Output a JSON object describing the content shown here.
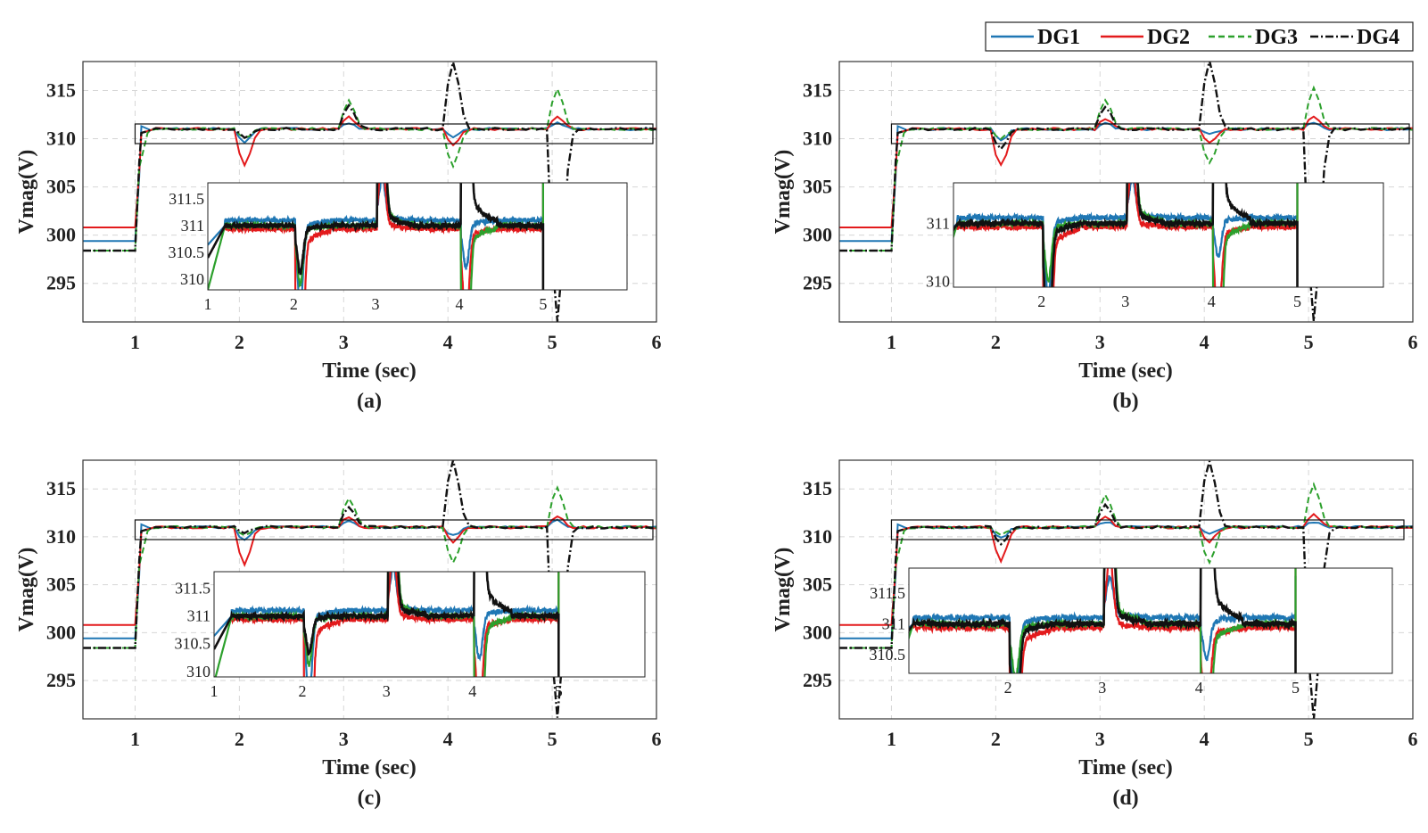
{
  "chart_data": [
    {
      "type": "line",
      "caption": "(a)",
      "xlabel": "Time (sec)",
      "ylabel": "Vmag(V)",
      "xlim": [
        0.5,
        6
      ],
      "ylim": [
        291,
        318
      ],
      "xticks": [
        1,
        2,
        3,
        4,
        5,
        6
      ],
      "yticks": [
        295,
        300,
        305,
        310,
        315
      ],
      "grid": true,
      "initial_values": {
        "DG1": 299.4,
        "DG2": 300.8,
        "DG3": 298.4,
        "DG4": 298.4
      },
      "transients": [
        {
          "t": 2.05,
          "DG1": 309.6,
          "DG2": 307.2,
          "DG3": 310.0,
          "DG4": 310.2
        },
        {
          "t": 3.05,
          "DG1": 311.7,
          "DG2": 312.2,
          "DG3": 313.9,
          "DG4": 313.4
        },
        {
          "t": 4.05,
          "DG1": 310.2,
          "DG2": 309.4,
          "DG3": 307.2,
          "DG4": 318.0
        },
        {
          "t": 5.05,
          "DG1": 311.7,
          "DG2": 312.2,
          "DG3": 315.2,
          "DG4": 291.0
        }
      ],
      "inset": {
        "xticks": [
          1,
          2,
          3,
          4,
          5
        ],
        "yticks": [
          310,
          310.5,
          311,
          311.5
        ],
        "ylim": [
          309.8,
          311.8
        ]
      }
    },
    {
      "type": "line",
      "caption": "(b)",
      "xlabel": "Time (sec)",
      "ylabel": "Vmag(V)",
      "xlim": [
        0.5,
        6
      ],
      "ylim": [
        291,
        318
      ],
      "xticks": [
        1,
        2,
        3,
        4,
        5,
        6
      ],
      "yticks": [
        295,
        300,
        305,
        310,
        315
      ],
      "grid": true,
      "initial_values": {
        "DG1": 299.4,
        "DG2": 300.8,
        "DG3": 298.4,
        "DG4": 298.4
      },
      "transients": [
        {
          "t": 2.05,
          "DG1": 309.8,
          "DG2": 307.2,
          "DG3": 310.1,
          "DG4": 309.0
        },
        {
          "t": 3.05,
          "DG1": 311.6,
          "DG2": 312.0,
          "DG3": 314.0,
          "DG4": 313.3
        },
        {
          "t": 4.05,
          "DG1": 310.4,
          "DG2": 309.5,
          "DG3": 307.4,
          "DG4": 318.0
        },
        {
          "t": 5.05,
          "DG1": 311.6,
          "DG2": 312.4,
          "DG3": 315.3,
          "DG4": 291.0
        }
      ],
      "inset": {
        "xticks": [
          2,
          3,
          4,
          5
        ],
        "yticks": [
          310,
          311
        ],
        "ylim": [
          309.9,
          311.7
        ]
      }
    },
    {
      "type": "line",
      "caption": "(c)",
      "xlabel": "Time (sec)",
      "ylabel": "Vmag(V)",
      "xlim": [
        0.5,
        6
      ],
      "ylim": [
        291,
        318
      ],
      "xticks": [
        1,
        2,
        3,
        4,
        5,
        6
      ],
      "yticks": [
        295,
        300,
        305,
        310,
        315
      ],
      "grid": true,
      "initial_values": {
        "DG1": 299.4,
        "DG2": 300.8,
        "DG3": 298.4,
        "DG4": 298.4
      },
      "transients": [
        {
          "t": 2.05,
          "DG1": 309.6,
          "DG2": 307.2,
          "DG3": 310.2,
          "DG4": 310.4
        },
        {
          "t": 3.05,
          "DG1": 311.7,
          "DG2": 312.1,
          "DG3": 314.1,
          "DG4": 313.2
        },
        {
          "t": 4.05,
          "DG1": 310.2,
          "DG2": 309.4,
          "DG3": 307.3,
          "DG4": 318.0
        },
        {
          "t": 5.05,
          "DG1": 311.7,
          "DG2": 312.2,
          "DG3": 315.1,
          "DG4": 291.0
        }
      ],
      "inset": {
        "xticks": [
          1,
          2,
          3,
          4,
          5
        ],
        "yticks": [
          310,
          310.5,
          311,
          311.5
        ],
        "ylim": [
          309.9,
          311.8
        ]
      }
    },
    {
      "type": "line",
      "caption": "(d)",
      "xlabel": "Time (sec)",
      "ylabel": "Vmag(V)",
      "xlim": [
        0.5,
        6
      ],
      "ylim": [
        291,
        318
      ],
      "xticks": [
        1,
        2,
        3,
        4,
        5,
        6
      ],
      "yticks": [
        295,
        300,
        305,
        310,
        315
      ],
      "grid": true,
      "initial_values": {
        "DG1": 299.4,
        "DG2": 300.8,
        "DG3": 298.4,
        "DG4": 298.4
      },
      "transients": [
        {
          "t": 2.05,
          "DG1": 309.8,
          "DG2": 307.5,
          "DG3": 310.2,
          "DG4": 309.2
        },
        {
          "t": 3.05,
          "DG1": 311.6,
          "DG2": 312.0,
          "DG3": 314.3,
          "DG4": 313.3
        },
        {
          "t": 4.05,
          "DG1": 310.4,
          "DG2": 309.5,
          "DG3": 307.4,
          "DG4": 318.0
        },
        {
          "t": 5.05,
          "DG1": 311.6,
          "DG2": 312.4,
          "DG3": 315.4,
          "DG4": 291.0
        }
      ],
      "inset": {
        "xticks": [
          2,
          3,
          4,
          5
        ],
        "yticks": [
          310.5,
          311,
          311.5
        ],
        "ylim": [
          310.2,
          311.9
        ]
      }
    }
  ],
  "legend": {
    "placement": "top-right",
    "entries": [
      {
        "name": "DG1",
        "color": "#1f77b4",
        "style": "solid"
      },
      {
        "name": "DG2",
        "color": "#e31a1c",
        "style": "solid"
      },
      {
        "name": "DG3",
        "color": "#2ca02c",
        "style": "dashed"
      },
      {
        "name": "DG4",
        "color": "#111111",
        "style": "dash-dot"
      }
    ]
  },
  "final_value": 311.0
}
